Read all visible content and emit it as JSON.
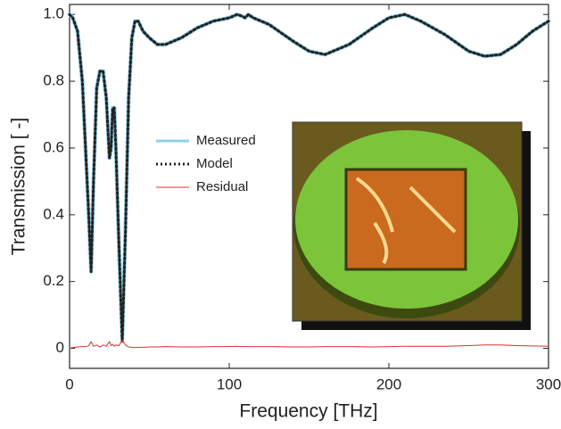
{
  "chart_data": {
    "type": "line",
    "xlabel": "Frequency [THz]",
    "ylabel": "Transmission  [ -]",
    "x": [
      0,
      2,
      5,
      8,
      10,
      12,
      13.5,
      15,
      17,
      19,
      21,
      23,
      25,
      26,
      27,
      28,
      29,
      31,
      33,
      35,
      37,
      39,
      41,
      43,
      46,
      50,
      55,
      60,
      70,
      80,
      90,
      100,
      105,
      108,
      110,
      112,
      115,
      125,
      140,
      150,
      160,
      175,
      190,
      200,
      210,
      220,
      235,
      250,
      260,
      270,
      280,
      290,
      300
    ],
    "series": [
      {
        "name": "Measured",
        "color": "#8fd0ea",
        "values": [
          1.0,
          0.99,
          0.95,
          0.8,
          0.6,
          0.4,
          0.23,
          0.5,
          0.78,
          0.83,
          0.83,
          0.75,
          0.57,
          0.6,
          0.72,
          0.72,
          0.6,
          0.3,
          0.03,
          0.35,
          0.75,
          0.93,
          0.98,
          0.98,
          0.95,
          0.93,
          0.91,
          0.91,
          0.93,
          0.96,
          0.98,
          0.99,
          1.0,
          0.995,
          0.99,
          1.0,
          0.99,
          0.97,
          0.92,
          0.89,
          0.88,
          0.91,
          0.96,
          0.99,
          1.0,
          0.98,
          0.94,
          0.89,
          0.875,
          0.88,
          0.91,
          0.95,
          0.98
        ]
      },
      {
        "name": "Model",
        "color": "#222222",
        "values": [
          1.0,
          0.99,
          0.95,
          0.8,
          0.6,
          0.4,
          0.23,
          0.5,
          0.78,
          0.83,
          0.83,
          0.75,
          0.57,
          0.6,
          0.72,
          0.72,
          0.6,
          0.3,
          0.02,
          0.35,
          0.75,
          0.93,
          0.98,
          0.98,
          0.95,
          0.93,
          0.91,
          0.91,
          0.93,
          0.96,
          0.98,
          0.99,
          1.0,
          0.995,
          0.99,
          1.0,
          0.99,
          0.97,
          0.92,
          0.89,
          0.88,
          0.91,
          0.96,
          0.99,
          1.0,
          0.98,
          0.94,
          0.89,
          0.875,
          0.88,
          0.91,
          0.95,
          0.98
        ]
      },
      {
        "name": "Residual",
        "color": "#e03030",
        "values": [
          0,
          0.002,
          0.004,
          0.005,
          0.005,
          0.008,
          0.02,
          0.006,
          0.01,
          0.004,
          0.01,
          0.006,
          0.02,
          0.008,
          0.012,
          0.006,
          0.01,
          0.008,
          0.025,
          0.01,
          0.004,
          0.003,
          0.002,
          0.003,
          0.003,
          0.004,
          0.004,
          0.005,
          0.004,
          0.004,
          0.005,
          0.005,
          0.006,
          0.005,
          0.005,
          0.005,
          0.005,
          0.005,
          0.004,
          0.004,
          0.005,
          0.005,
          0.004,
          0.005,
          0.006,
          0.006,
          0.006,
          0.008,
          0.01,
          0.01,
          0.008,
          0.007,
          0.006
        ]
      }
    ],
    "xlim": [
      0,
      300
    ],
    "ylim": [
      -0.06,
      1.03
    ],
    "xticks": [
      0,
      100,
      200,
      300
    ],
    "yticks": [
      0,
      0.2,
      0.4,
      0.6,
      0.8,
      {
        "value": 1,
        "label": "1.0"
      }
    ]
  }
}
